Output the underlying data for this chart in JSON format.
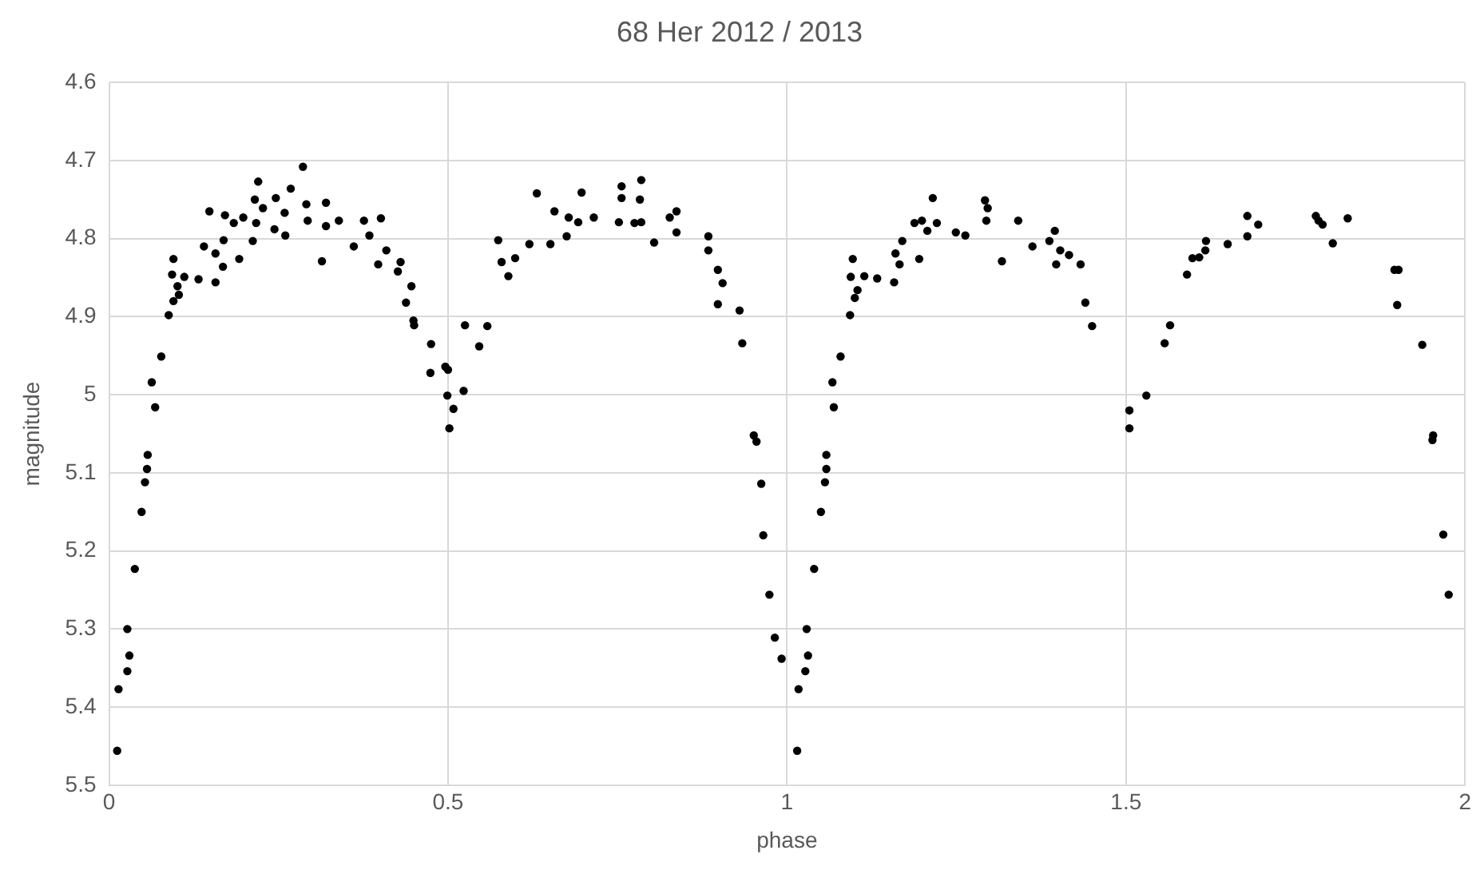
{
  "chart_data": {
    "type": "scatter",
    "title": "68 Her 2012 / 2013",
    "xlabel": "phase",
    "ylabel": "magnitude",
    "xlim": [
      0,
      2
    ],
    "xticks": [
      0,
      0.5,
      1,
      1.5,
      2
    ],
    "ylim": [
      5.5,
      4.6
    ],
    "yticks": [
      4.6,
      4.7,
      4.8,
      4.9,
      5,
      5.1,
      5.2,
      5.3,
      5.4,
      5.5
    ],
    "grid": true,
    "legend": false,
    "marker": "circle",
    "series": [
      {
        "color": "#000000",
        "x": [
          0.012,
          0.014,
          0.027,
          0.03,
          0.027,
          0.038,
          0.048,
          0.053,
          0.056,
          0.057,
          0.068,
          0.063,
          0.077,
          0.088,
          0.095,
          0.103,
          0.101,
          0.093,
          0.095,
          0.111,
          0.132,
          0.157,
          0.168,
          0.157,
          0.14,
          0.169,
          0.192,
          0.148,
          0.171,
          0.184,
          0.198,
          0.212,
          0.217,
          0.215,
          0.22,
          0.227,
          0.244,
          0.246,
          0.259,
          0.26,
          0.268,
          0.286,
          0.291,
          0.293,
          0.314,
          0.32,
          0.32,
          0.339,
          0.361,
          0.376,
          0.384,
          0.401,
          0.397,
          0.409,
          0.426,
          0.43,
          0.446,
          0.438,
          0.449,
          0.45,
          0.475,
          0.474,
          0.496,
          0.5,
          0.499,
          0.508,
          0.502,
          0.523,
          0.525,
          0.546,
          0.558,
          0.574,
          0.579,
          0.589,
          0.599,
          0.62,
          0.651,
          0.631,
          0.657,
          0.675,
          0.678,
          0.697,
          0.692,
          0.715,
          0.752,
          0.756,
          0.756,
          0.785,
          0.783,
          0.775,
          0.785,
          0.804,
          0.827,
          0.837,
          0.837,
          0.884,
          0.884,
          0.898,
          0.905,
          0.898,
          0.93,
          0.934,
          0.951,
          0.955,
          0.962,
          0.965,
          0.974,
          0.982,
          0.992,
          1.015,
          1.017,
          1.027,
          1.031,
          1.029,
          1.04,
          1.05,
          1.056,
          1.058,
          1.058,
          1.069,
          1.067,
          1.079,
          1.093,
          1.1,
          1.104,
          1.094,
          1.097,
          1.114,
          1.133,
          1.158,
          1.166,
          1.16,
          1.17,
          1.195,
          1.188,
          1.199,
          1.207,
          1.215,
          1.221,
          1.249,
          1.263,
          1.292,
          1.296,
          1.294,
          1.317,
          1.341,
          1.362,
          1.387,
          1.395,
          1.397,
          1.403,
          1.416,
          1.433,
          1.44,
          1.45,
          1.505,
          1.505,
          1.53,
          1.557,
          1.565,
          1.59,
          1.598,
          1.608,
          1.617,
          1.618,
          1.65,
          1.679,
          1.679,
          1.695,
          1.78,
          1.784,
          1.79,
          1.805,
          1.827,
          1.896,
          1.902,
          1.9,
          1.937,
          1.953,
          1.952,
          1.968,
          1.976
        ],
        "values": [
          5.456,
          5.377,
          5.354,
          5.334,
          5.3,
          5.223,
          5.15,
          5.112,
          5.095,
          5.077,
          5.016,
          4.984,
          4.951,
          4.898,
          4.88,
          4.872,
          4.861,
          4.846,
          4.826,
          4.849,
          4.852,
          4.856,
          4.836,
          4.819,
          4.81,
          4.802,
          4.826,
          4.765,
          4.77,
          4.78,
          4.773,
          4.803,
          4.78,
          4.75,
          4.727,
          4.761,
          4.788,
          4.748,
          4.767,
          4.796,
          4.736,
          4.708,
          4.756,
          4.777,
          4.829,
          4.754,
          4.784,
          4.777,
          4.81,
          4.777,
          4.796,
          4.774,
          4.833,
          4.815,
          4.842,
          4.83,
          4.861,
          4.882,
          4.905,
          4.911,
          4.935,
          4.972,
          4.964,
          4.968,
          5.001,
          5.018,
          5.043,
          4.995,
          4.911,
          4.938,
          4.912,
          4.802,
          4.83,
          4.848,
          4.825,
          4.807,
          4.807,
          4.742,
          4.765,
          4.797,
          4.773,
          4.741,
          4.779,
          4.773,
          4.779,
          4.733,
          4.748,
          4.725,
          4.75,
          4.78,
          4.779,
          4.805,
          4.773,
          4.765,
          4.792,
          4.797,
          4.815,
          4.84,
          4.857,
          4.884,
          4.892,
          4.934,
          5.052,
          5.06,
          5.114,
          5.18,
          5.256,
          5.311,
          5.338,
          5.456,
          5.377,
          5.354,
          5.334,
          5.3,
          5.223,
          5.15,
          5.112,
          5.095,
          5.077,
          5.016,
          4.984,
          4.951,
          4.898,
          4.876,
          4.866,
          4.849,
          4.826,
          4.848,
          4.851,
          4.856,
          4.833,
          4.819,
          4.803,
          4.826,
          4.78,
          4.777,
          4.79,
          4.748,
          4.78,
          4.792,
          4.796,
          4.751,
          4.761,
          4.777,
          4.829,
          4.777,
          4.81,
          4.803,
          4.79,
          4.833,
          4.815,
          4.821,
          4.833,
          4.882,
          4.912,
          5.02,
          5.043,
          5.001,
          4.934,
          4.911,
          4.846,
          4.825,
          4.824,
          4.815,
          4.803,
          4.807,
          4.797,
          4.771,
          4.782,
          4.771,
          4.777,
          4.782,
          4.806,
          4.774,
          4.84,
          4.84,
          4.885,
          4.936,
          5.052,
          5.058,
          5.179,
          5.256
        ]
      }
    ]
  }
}
